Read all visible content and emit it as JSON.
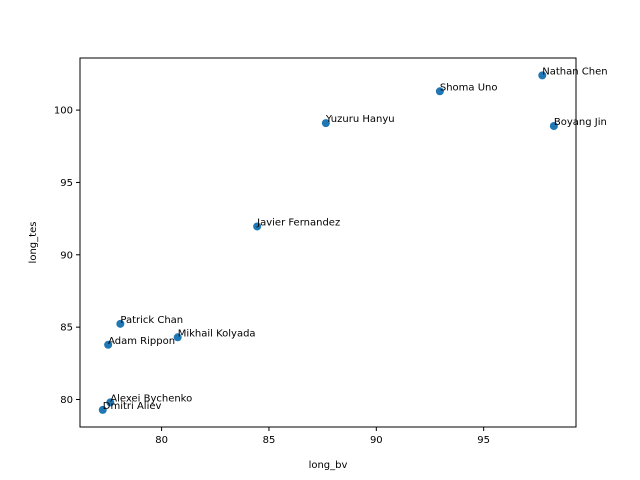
{
  "chart_data": {
    "type": "scatter",
    "xlabel": "long_bv",
    "ylabel": "long_tes",
    "xlim": [
      76.2,
      99.3
    ],
    "ylim": [
      78.1,
      103.6
    ],
    "xticks": [
      80,
      85,
      90,
      95
    ],
    "yticks": [
      80,
      85,
      90,
      95,
      100
    ],
    "grid": false,
    "marker_color": "#1f77b4",
    "points": [
      {
        "label": "Nathan Chen",
        "x": 97.73,
        "y": 102.4
      },
      {
        "label": "Shoma Uno",
        "x": 92.96,
        "y": 101.3
      },
      {
        "label": "Yuzuru Hanyu",
        "x": 87.65,
        "y": 99.1
      },
      {
        "label": "Boyang Jin",
        "x": 98.27,
        "y": 98.9
      },
      {
        "label": "Javier Fernandez",
        "x": 84.45,
        "y": 91.96
      },
      {
        "label": "Patrick Chan",
        "x": 78.08,
        "y": 85.23
      },
      {
        "label": "Mikhail Kolyada",
        "x": 80.75,
        "y": 84.3
      },
      {
        "label": "Adam Rippon",
        "x": 77.51,
        "y": 83.78
      },
      {
        "label": "Alexei Bychenko",
        "x": 77.61,
        "y": 79.8
      },
      {
        "label": "Dmitri Aliev",
        "x": 77.26,
        "y": 79.28
      }
    ]
  }
}
